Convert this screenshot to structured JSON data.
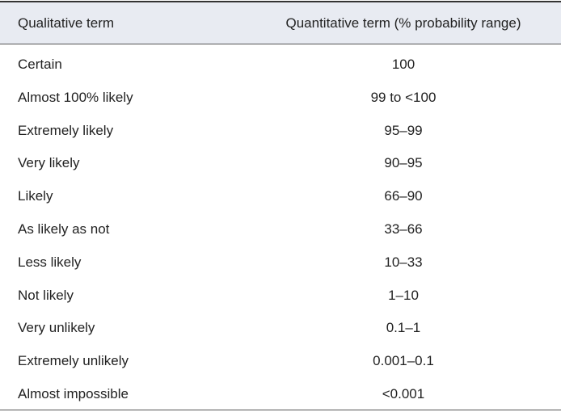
{
  "table": {
    "header": [
      "Qualitative term",
      "Quantitative term (% probability range)"
    ],
    "rows": [
      [
        "Certain",
        "100"
      ],
      [
        "Almost 100% likely",
        "99 to <100"
      ],
      [
        "Extremely likely",
        "95–99"
      ],
      [
        "Very likely",
        "90–95"
      ],
      [
        "Likely",
        "66–90"
      ],
      [
        "As likely as not",
        "33–66"
      ],
      [
        "Less likely",
        "10–33"
      ],
      [
        "Not likely",
        "1–10"
      ],
      [
        "Very unlikely",
        "0.1–1"
      ],
      [
        "Extremely unlikely",
        "0.001–0.1"
      ],
      [
        "Almost impossible",
        "<0.001"
      ]
    ]
  }
}
